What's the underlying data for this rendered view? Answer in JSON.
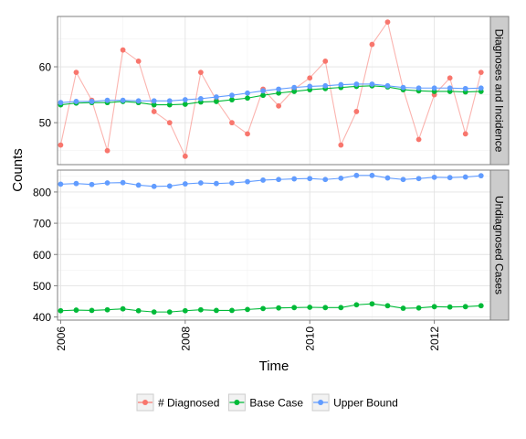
{
  "chart_data": {
    "type": "line",
    "xlabel": "Time",
    "ylabel": "Counts",
    "x_ticks": [
      "2006",
      "2008",
      "2010",
      "2012"
    ],
    "legend_position": "bottom",
    "grid": true,
    "series_colors": {
      "# Diagnosed": "#F8766D",
      "Base Case": "#00BA38",
      "Upper Bound": "#619CFF"
    },
    "legend": [
      "# Diagnosed",
      "Base Case",
      "Upper Bound"
    ],
    "panels": [
      {
        "title": "Diagnoses and Incidence",
        "ylim": [
          42.5,
          69
        ],
        "y_ticks": [
          50,
          60
        ],
        "series": [
          {
            "name": "# Diagnosed",
            "color": "#F8766D",
            "x": [
              2006.0,
              2006.25,
              2006.5,
              2006.75,
              2007.0,
              2007.25,
              2007.5,
              2007.75,
              2008.0,
              2008.25,
              2008.5,
              2008.75,
              2009.0,
              2009.25,
              2009.5,
              2009.75,
              2010.0,
              2010.25,
              2010.5,
              2010.75,
              2011.0,
              2011.25,
              2011.5,
              2011.75,
              2012.0,
              2012.25,
              2012.5,
              2012.75
            ],
            "values": [
              46,
              59,
              54,
              45,
              63,
              61,
              52,
              50,
              44,
              59,
              54,
              50,
              48,
              56,
              53,
              56,
              58,
              61,
              46,
              52,
              64,
              68,
              56,
              47,
              55,
              58,
              48,
              59
            ]
          },
          {
            "name": "Base Case",
            "color": "#00BA38",
            "x": [
              2006.0,
              2006.25,
              2006.5,
              2006.75,
              2007.0,
              2007.25,
              2007.5,
              2007.75,
              2008.0,
              2008.25,
              2008.5,
              2008.75,
              2009.0,
              2009.25,
              2009.5,
              2009.75,
              2010.0,
              2010.25,
              2010.5,
              2010.75,
              2011.0,
              2011.25,
              2011.5,
              2011.75,
              2012.0,
              2012.25,
              2012.5,
              2012.75
            ],
            "values": [
              53.2,
              53.5,
              53.6,
              53.6,
              53.8,
              53.6,
              53.2,
              53.2,
              53.3,
              53.7,
              53.8,
              54.1,
              54.4,
              54.9,
              55.3,
              55.6,
              55.9,
              56.1,
              56.3,
              56.5,
              56.6,
              56.4,
              55.9,
              55.7,
              55.6,
              55.6,
              55.5,
              55.6
            ]
          },
          {
            "name": "Upper Bound",
            "color": "#619CFF",
            "x": [
              2006.0,
              2006.25,
              2006.5,
              2006.75,
              2007.0,
              2007.25,
              2007.5,
              2007.75,
              2008.0,
              2008.25,
              2008.5,
              2008.75,
              2009.0,
              2009.25,
              2009.5,
              2009.75,
              2010.0,
              2010.25,
              2010.5,
              2010.75,
              2011.0,
              2011.25,
              2011.5,
              2011.75,
              2012.0,
              2012.25,
              2012.5,
              2012.75
            ],
            "values": [
              53.6,
              53.8,
              53.8,
              54.0,
              54.0,
              53.9,
              53.9,
              53.9,
              54.1,
              54.3,
              54.6,
              54.9,
              55.3,
              55.7,
              56.0,
              56.3,
              56.5,
              56.6,
              56.8,
              56.9,
              56.9,
              56.6,
              56.3,
              56.2,
              56.2,
              56.2,
              56.1,
              56.2
            ]
          }
        ]
      },
      {
        "title": "Undiagnosed Cases",
        "ylim": [
          390,
          870
        ],
        "y_ticks": [
          400,
          500,
          600,
          700,
          800
        ],
        "series": [
          {
            "name": "Base Case",
            "color": "#00BA38",
            "x": [
              2006.0,
              2006.25,
              2006.5,
              2006.75,
              2007.0,
              2007.25,
              2007.5,
              2007.75,
              2008.0,
              2008.25,
              2008.5,
              2008.75,
              2009.0,
              2009.25,
              2009.5,
              2009.75,
              2010.0,
              2010.25,
              2010.5,
              2010.75,
              2011.0,
              2011.25,
              2011.5,
              2011.75,
              2012.0,
              2012.25,
              2012.5,
              2012.75
            ],
            "values": [
              420,
              422,
              421,
              423,
              426,
              420,
              416,
              416,
              420,
              423,
              421,
              421,
              424,
              427,
              429,
              430,
              431,
              430,
              430,
              439,
              442,
              436,
              428,
              429,
              433,
              432,
              433,
              436
            ]
          },
          {
            "name": "Upper Bound",
            "color": "#619CFF",
            "x": [
              2006.0,
              2006.25,
              2006.5,
              2006.75,
              2007.0,
              2007.25,
              2007.5,
              2007.75,
              2008.0,
              2008.25,
              2008.5,
              2008.75,
              2009.0,
              2009.25,
              2009.5,
              2009.75,
              2010.0,
              2010.25,
              2010.5,
              2010.75,
              2011.0,
              2011.25,
              2011.5,
              2011.75,
              2012.0,
              2012.25,
              2012.5,
              2012.75
            ],
            "values": [
              825,
              827,
              824,
              829,
              830,
              822,
              818,
              819,
              826,
              829,
              827,
              829,
              833,
              838,
              840,
              842,
              843,
              840,
              844,
              853,
              853,
              845,
              840,
              843,
              847,
              846,
              848,
              852
            ]
          }
        ]
      }
    ]
  }
}
